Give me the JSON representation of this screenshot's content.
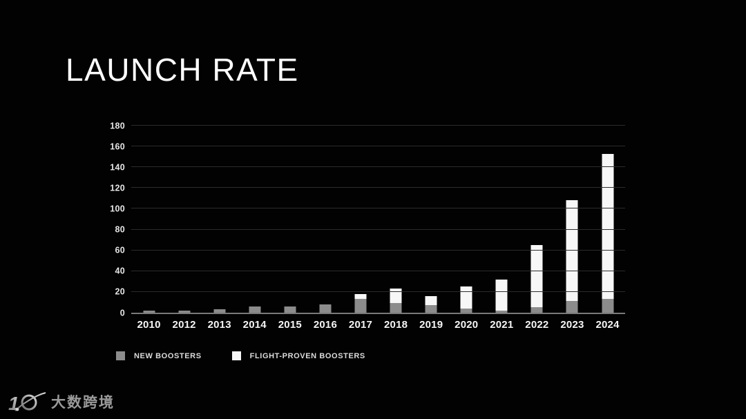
{
  "header": {
    "title": "LAUNCH RATE"
  },
  "chart_data": {
    "type": "bar",
    "stacked": true,
    "title": "LAUNCH RATE",
    "categories": [
      "2010",
      "2012",
      "2013",
      "2014",
      "2015",
      "2016",
      "2017",
      "2018",
      "2019",
      "2020",
      "2021",
      "2022",
      "2023",
      "2024"
    ],
    "series": [
      {
        "name": "NEW BOOSTERS",
        "color": "#8c8c8c",
        "values": [
          2,
          2,
          3,
          6,
          6,
          8,
          13,
          9,
          7,
          4,
          2,
          5,
          11,
          13
        ]
      },
      {
        "name": "FLIGHT-PROVEN BOOSTERS",
        "color": "#f7f7f7",
        "values": [
          0,
          0,
          0,
          0,
          0,
          0,
          5,
          14,
          9,
          21,
          30,
          60,
          97,
          140
        ]
      }
    ],
    "totals": [
      2,
      2,
      3,
      6,
      6,
      8,
      18,
      23,
      16,
      25,
      32,
      65,
      108,
      153
    ],
    "xlabel": "",
    "ylabel": "",
    "ylim": [
      0,
      180
    ],
    "y_ticks": [
      0,
      20,
      40,
      60,
      80,
      100,
      120,
      140,
      160,
      180
    ],
    "grid": "horizontal",
    "legend_position": "bottom-left",
    "colors": {
      "background": "#020202",
      "gridline": "#2b2b2b",
      "axis_line": "#7a7a7a",
      "tick_text": "#e6e6e6",
      "title_text": "#ffffff"
    }
  },
  "footer": {
    "watermark_text": "大数跨境",
    "watermark_logo": "orbit-10-logo"
  }
}
